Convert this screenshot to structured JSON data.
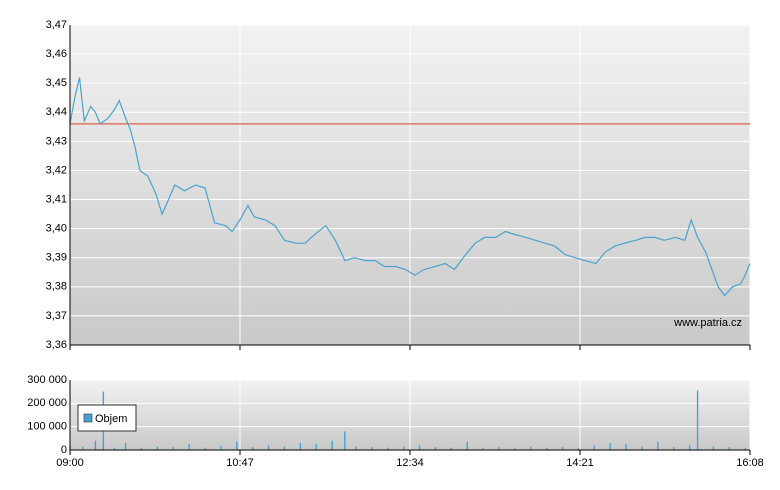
{
  "chart_data": [
    {
      "type": "line",
      "xlim": [
        540,
        968
      ],
      "xticks": [
        540,
        647,
        754,
        861,
        968
      ],
      "ylim": [
        3.36,
        3.47
      ],
      "yticks": [
        {
          "value": 3.36,
          "label": "3,36"
        },
        {
          "value": 3.37,
          "label": "3,37"
        },
        {
          "value": 3.38,
          "label": "3,38"
        },
        {
          "value": 3.39,
          "label": "3,39"
        },
        {
          "value": 3.4,
          "label": "3,40"
        },
        {
          "value": 3.41,
          "label": "3,41"
        },
        {
          "value": 3.42,
          "label": "3,42"
        },
        {
          "value": 3.43,
          "label": "3,43"
        },
        {
          "value": 3.44,
          "label": "3,44"
        },
        {
          "value": 3.45,
          "label": "3,45"
        },
        {
          "value": 3.46,
          "label": "3,46"
        },
        {
          "value": 3.47,
          "label": "3,47"
        }
      ],
      "grid": true,
      "reference_line": {
        "value": 3.436,
        "color": "#e0604a"
      },
      "annotation": "www.patria.cz",
      "color": "#4aa3cc",
      "x": [
        540,
        543,
        546,
        549,
        553,
        556,
        559,
        564,
        568,
        571,
        575,
        578,
        581,
        584,
        589,
        594,
        598,
        602,
        606,
        612,
        619,
        625,
        628,
        631,
        638,
        642,
        647,
        652,
        656,
        663,
        669,
        675,
        682,
        688,
        694,
        701,
        707,
        713,
        719,
        726,
        732,
        738,
        745,
        751,
        757,
        763,
        770,
        776,
        782,
        789,
        795,
        801,
        808,
        814,
        820,
        827,
        833,
        839,
        845,
        852,
        858,
        864,
        871,
        877,
        883,
        889,
        896,
        902,
        908,
        914,
        921,
        927,
        931,
        935,
        940,
        944,
        948,
        952,
        957,
        962,
        965,
        968
      ],
      "values": [
        3.436,
        3.445,
        3.452,
        3.437,
        3.442,
        3.44,
        3.436,
        3.438,
        3.441,
        3.444,
        3.438,
        3.434,
        3.428,
        3.42,
        3.418,
        3.412,
        3.405,
        3.41,
        3.415,
        3.413,
        3.415,
        3.414,
        3.408,
        3.402,
        3.401,
        3.399,
        3.403,
        3.408,
        3.404,
        3.403,
        3.401,
        3.396,
        3.395,
        3.395,
        3.398,
        3.401,
        3.396,
        3.389,
        3.39,
        3.389,
        3.389,
        3.387,
        3.387,
        3.386,
        3.384,
        3.386,
        3.387,
        3.388,
        3.386,
        3.391,
        3.395,
        3.397,
        3.397,
        3.399,
        3.398,
        3.397,
        3.396,
        3.395,
        3.394,
        3.391,
        3.39,
        3.389,
        3.388,
        3.392,
        3.394,
        3.395,
        3.396,
        3.397,
        3.397,
        3.396,
        3.397,
        3.396,
        3.403,
        3.397,
        3.392,
        3.386,
        3.38,
        3.377,
        3.38,
        3.381,
        3.384,
        3.388
      ]
    },
    {
      "type": "bar",
      "xlim": [
        540,
        968
      ],
      "xticks": [
        {
          "value": 540,
          "label": "09:00"
        },
        {
          "value": 647,
          "label": "10:47"
        },
        {
          "value": 754,
          "label": "12:34"
        },
        {
          "value": 861,
          "label": "14:21"
        },
        {
          "value": 968,
          "label": "16:08"
        }
      ],
      "ylim": [
        0,
        300000
      ],
      "yticks": [
        {
          "value": 0,
          "label": "0"
        },
        {
          "value": 100000,
          "label": "100 000"
        },
        {
          "value": 200000,
          "label": "200 000"
        },
        {
          "value": 300000,
          "label": "300 000"
        }
      ],
      "grid": true,
      "legend": "top-left",
      "series": [
        {
          "name": "Objem",
          "color": "#4a9fd0",
          "x": [
            540,
            548,
            556,
            561,
            568,
            575,
            585,
            595,
            605,
            615,
            625,
            635,
            645,
            655,
            665,
            675,
            685,
            695,
            705,
            713,
            720,
            730,
            740,
            750,
            760,
            770,
            780,
            790,
            800,
            810,
            820,
            830,
            840,
            850,
            860,
            870,
            880,
            890,
            900,
            910,
            920,
            930,
            935,
            945,
            955,
            965
          ],
          "values": [
            20000,
            15000,
            40000,
            250000,
            10000,
            30000,
            8000,
            15000,
            12000,
            25000,
            10000,
            18000,
            35000,
            12000,
            20000,
            15000,
            30000,
            25000,
            40000,
            80000,
            15000,
            12000,
            10000,
            15000,
            20000,
            12000,
            10000,
            35000,
            10000,
            12000,
            8000,
            15000,
            10000,
            12000,
            8000,
            20000,
            30000,
            25000,
            15000,
            35000,
            12000,
            20000,
            255000,
            15000,
            12000,
            8000
          ]
        }
      ]
    }
  ]
}
